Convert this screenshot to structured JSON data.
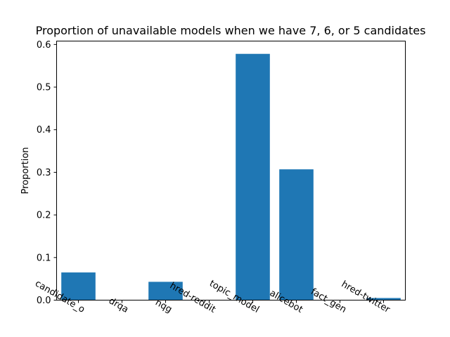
{
  "chart_data": {
    "type": "bar",
    "title": "Proportion of unavailable models when we have 7, 6, or 5 candidates",
    "xlabel": "",
    "ylabel": "Proportion",
    "categories": [
      "candidate_o",
      "drqa",
      "nqg",
      "hred-reddit",
      "topic_model",
      "alicebot",
      "fact_gen",
      "hred-twitter"
    ],
    "values": [
      0.065,
      0.0,
      0.043,
      0.0,
      0.578,
      0.307,
      0.0,
      0.005
    ],
    "ylim": [
      0,
      0.608
    ],
    "yticks": [
      0.0,
      0.1,
      0.2,
      0.3,
      0.4,
      0.5,
      0.6
    ],
    "ytick_labels": [
      "0.0",
      "0.1",
      "0.2",
      "0.3",
      "0.4",
      "0.5",
      "0.6"
    ],
    "bar_color": "#1f77b4",
    "grid": false,
    "legend": "none"
  }
}
